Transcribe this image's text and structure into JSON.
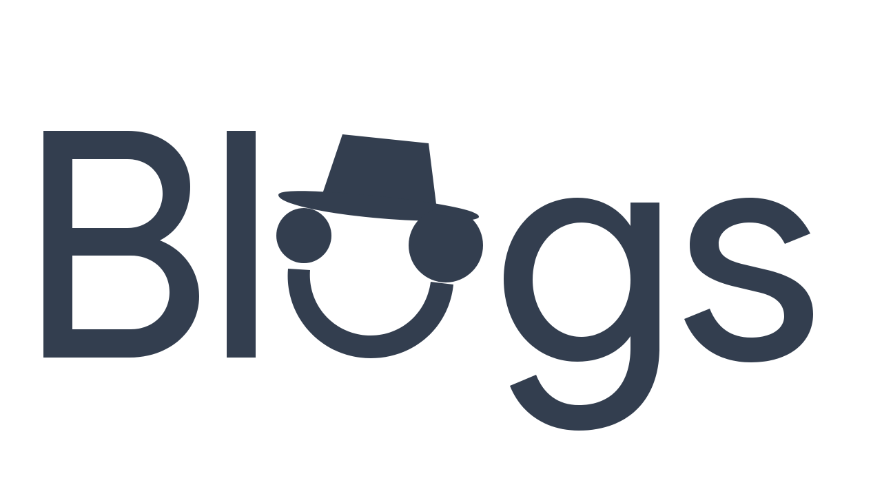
{
  "logo": {
    "text": "Blogs",
    "color": "#333e4f",
    "background": "#ffffff",
    "icon": "hat-face-icon"
  }
}
